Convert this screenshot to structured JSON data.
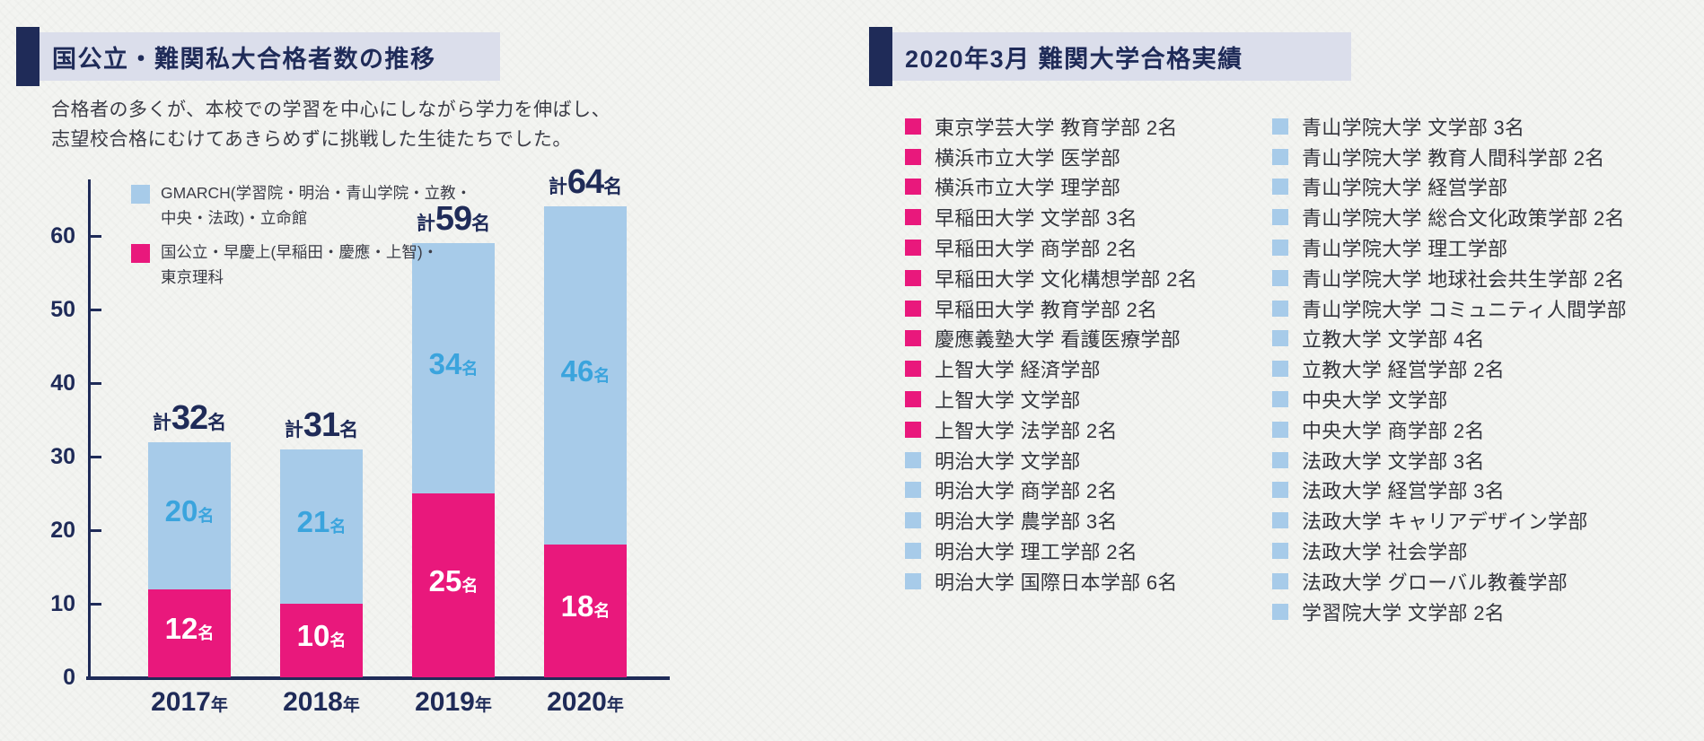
{
  "colors": {
    "navy": "#1f2b58",
    "banner_bg": "#dbdeeb",
    "pink": "#e9187c",
    "light_blue": "#a7cbe9",
    "bar_blue_label": "#3ba4dd",
    "page_bg": "#f3f4f1"
  },
  "left_panel": {
    "subtitle_line1": "合格者の多くが、本校での学習を中心にしながら学力を伸ばし、",
    "subtitle_line2": "志望校合格にむけてあきらめずに挑戦した生徒たちでした。"
  },
  "chart_data": {
    "type": "bar",
    "stacked": true,
    "title": "国公立・難関私大合格者数の推移",
    "categories": [
      "2017年",
      "2018年",
      "2019年",
      "2020年"
    ],
    "series": [
      {
        "name": "GMARCH(学習院・明治・青山学院・立教・中央・法政)・立命館",
        "color": "#a7cbe9",
        "label_color": "#3ba4dd",
        "values": [
          20,
          21,
          34,
          46
        ]
      },
      {
        "name": "国公立・早慶上(早稲田・慶應・上智)・東京理科",
        "color": "#e9187c",
        "label_color": "#ffffff",
        "values": [
          12,
          10,
          25,
          18
        ]
      }
    ],
    "totals": [
      32,
      31,
      59,
      64
    ],
    "total_prefix": "計",
    "unit": "名",
    "xlabel": "",
    "ylabel": "",
    "ylim": [
      0,
      66
    ],
    "yticks": [
      0,
      10,
      20,
      30,
      40,
      50,
      60
    ],
    "grid": false,
    "legend_position": "top-left",
    "legend": [
      {
        "color": "#a7cbe9",
        "line1": "GMARCH(学習院・明治・青山学院・立教・",
        "line2": "中央・法政)・立命館"
      },
      {
        "color": "#e9187c",
        "line1": "国公立・早慶上(早稲田・慶應・上智)・",
        "line2": "東京理科"
      }
    ]
  },
  "right_panel": {
    "title": "2020年3月 難関大学合格実績",
    "columns": [
      {
        "items": [
          {
            "marker": "pink",
            "text": "東京学芸大学 教育学部 2名"
          },
          {
            "marker": "pink",
            "text": "横浜市立大学 医学部"
          },
          {
            "marker": "pink",
            "text": "横浜市立大学 理学部"
          },
          {
            "marker": "pink",
            "text": "早稲田大学 文学部 3名"
          },
          {
            "marker": "pink",
            "text": "早稲田大学 商学部 2名"
          },
          {
            "marker": "pink",
            "text": "早稲田大学 文化構想学部 2名"
          },
          {
            "marker": "pink",
            "text": "早稲田大学 教育学部 2名"
          },
          {
            "marker": "pink",
            "text": "慶應義塾大学 看護医療学部"
          },
          {
            "marker": "pink",
            "text": "上智大学 経済学部"
          },
          {
            "marker": "pink",
            "text": "上智大学 文学部"
          },
          {
            "marker": "pink",
            "text": "上智大学 法学部 2名"
          },
          {
            "marker": "blue",
            "text": "明治大学 文学部"
          },
          {
            "marker": "blue",
            "text": "明治大学 商学部 2名"
          },
          {
            "marker": "blue",
            "text": "明治大学 農学部 3名"
          },
          {
            "marker": "blue",
            "text": "明治大学 理工学部 2名"
          },
          {
            "marker": "blue",
            "text": "明治大学 国際日本学部 6名"
          }
        ]
      },
      {
        "items": [
          {
            "marker": "blue",
            "text": "青山学院大学 文学部 3名"
          },
          {
            "marker": "blue",
            "text": "青山学院大学 教育人間科学部 2名"
          },
          {
            "marker": "blue",
            "text": "青山学院大学 経営学部"
          },
          {
            "marker": "blue",
            "text": "青山学院大学 総合文化政策学部 2名"
          },
          {
            "marker": "blue",
            "text": "青山学院大学 理工学部"
          },
          {
            "marker": "blue",
            "text": "青山学院大学 地球社会共生学部 2名"
          },
          {
            "marker": "blue",
            "text": "青山学院大学 コミュニティ人間学部"
          },
          {
            "marker": "blue",
            "text": "立教大学 文学部 4名"
          },
          {
            "marker": "blue",
            "text": "立教大学 経営学部 2名"
          },
          {
            "marker": "blue",
            "text": "中央大学 文学部"
          },
          {
            "marker": "blue",
            "text": "中央大学 商学部 2名"
          },
          {
            "marker": "blue",
            "text": "法政大学 文学部 3名"
          },
          {
            "marker": "blue",
            "text": "法政大学 経営学部 3名"
          },
          {
            "marker": "blue",
            "text": "法政大学 キャリアデザイン学部"
          },
          {
            "marker": "blue",
            "text": "法政大学 社会学部"
          },
          {
            "marker": "blue",
            "text": "法政大学 グローバル教養学部"
          },
          {
            "marker": "blue",
            "text": "学習院大学 文学部 2名"
          }
        ]
      }
    ]
  }
}
